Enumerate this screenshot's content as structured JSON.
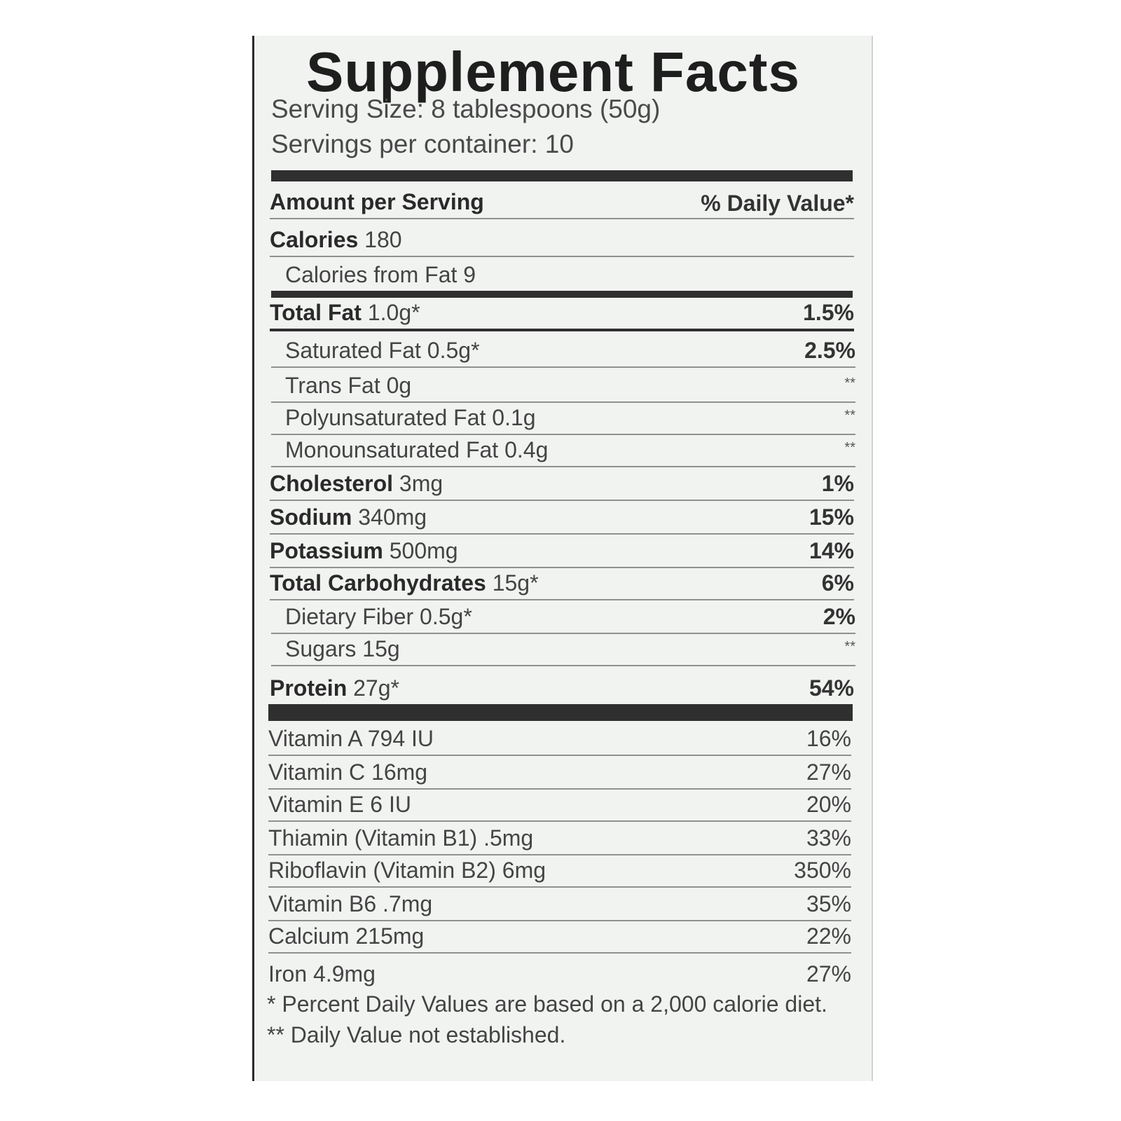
{
  "title": "Supplement Facts",
  "serving_size": "Serving Size: 8 tablespoons (50g)",
  "servings_per_container": "Servings per container: 10",
  "header": {
    "amount_per_serving": "Amount per Serving",
    "daily_value": "% Daily Value*"
  },
  "calories": {
    "label": "Calories",
    "value": "180"
  },
  "calories_from_fat": "Calories from Fat 9",
  "nutrients": [
    {
      "name": "Total Fat",
      "amount": "1.0g*",
      "dv": "1.5%"
    },
    {
      "name": "Saturated Fat 0.5g*",
      "dv": "2.5%"
    },
    {
      "name": "Trans Fat 0g",
      "dv": "**"
    },
    {
      "name": "Polyunsaturated Fat 0.1g",
      "dv": "**"
    },
    {
      "name": "Monounsaturated Fat 0.4g",
      "dv": "**"
    },
    {
      "name": "Cholesterol",
      "amount": "3mg",
      "dv": "1%"
    },
    {
      "name": "Sodium",
      "amount": "340mg",
      "dv": "15%"
    },
    {
      "name": "Potassium",
      "amount": "500mg",
      "dv": "14%"
    },
    {
      "name": "Total Carbohydrates",
      "amount": "15g*",
      "dv": "6%"
    },
    {
      "name": "Dietary Fiber 0.5g*",
      "dv": "2%"
    },
    {
      "name": "Sugars 15g",
      "dv": "**"
    },
    {
      "name": "Protein",
      "amount": "27g*",
      "dv": "54%"
    }
  ],
  "vitamins": [
    {
      "label": "Vitamin A 794 IU",
      "dv": "16%"
    },
    {
      "label": "Vitamin C 16mg",
      "dv": "27%"
    },
    {
      "label": "Vitamin E 6 IU",
      "dv": "20%"
    },
    {
      "label": "Thiamin (Vitamin B1) .5mg",
      "dv": "33%"
    },
    {
      "label": "Riboflavin (Vitamin B2) 6mg",
      "dv": "350%"
    },
    {
      "label": "Vitamin B6 .7mg",
      "dv": "35%"
    },
    {
      "label": "Calcium 215mg",
      "dv": "22%"
    },
    {
      "label": "Iron 4.9mg",
      "dv": "27%"
    }
  ],
  "footnotes": [
    "* Percent Daily Values are based on a 2,000 calorie diet.",
    "** Daily Value not established."
  ]
}
